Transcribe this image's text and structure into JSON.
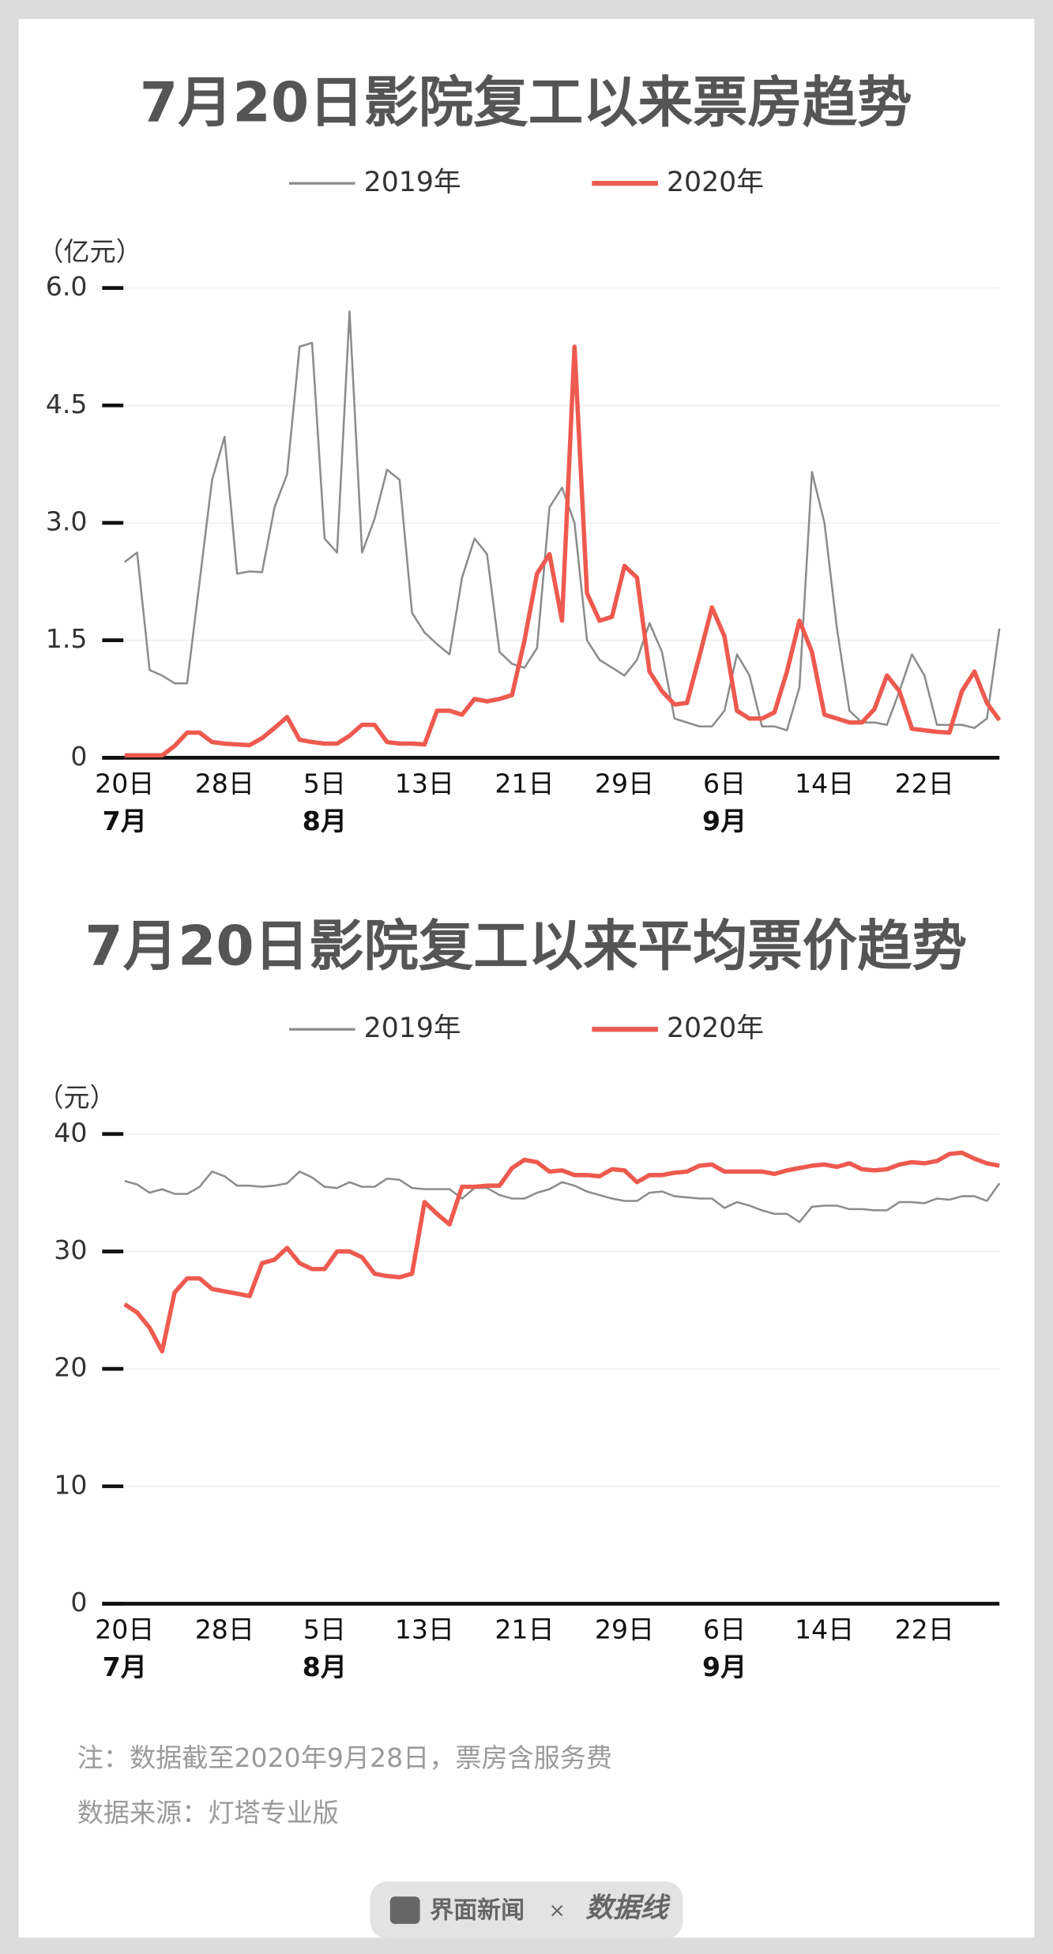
{
  "chart_data": [
    {
      "type": "line",
      "title": "7月20日影院复工以来票房趋势",
      "y_label": "（亿元）",
      "categories": [
        "20日",
        null,
        null,
        null,
        null,
        null,
        null,
        null,
        "28日",
        null,
        null,
        null,
        null,
        null,
        null,
        null,
        "5日",
        null,
        null,
        null,
        null,
        null,
        null,
        null,
        "13日",
        null,
        null,
        null,
        null,
        null,
        null,
        null,
        "21日",
        null,
        null,
        null,
        null,
        null,
        null,
        null,
        "29日",
        null,
        null,
        null,
        null,
        null,
        null,
        null,
        "6日",
        null,
        null,
        null,
        null,
        null,
        null,
        null,
        "14日",
        null,
        null,
        null,
        null,
        null,
        null,
        null,
        "22日",
        null,
        null,
        null,
        null,
        null,
        null
      ],
      "months": [
        "7月",
        null,
        null,
        null,
        null,
        null,
        null,
        null,
        null,
        null,
        null,
        null,
        null,
        null,
        null,
        null,
        "8月",
        null,
        null,
        null,
        null,
        null,
        null,
        null,
        null,
        null,
        null,
        null,
        null,
        null,
        null,
        null,
        null,
        null,
        null,
        null,
        null,
        null,
        null,
        null,
        null,
        null,
        null,
        null,
        null,
        null,
        null,
        null,
        "9月",
        null,
        null,
        null,
        null,
        null,
        null,
        null,
        null,
        null,
        null,
        null,
        null,
        null,
        null,
        null,
        null,
        null,
        null,
        null,
        null,
        null,
        null
      ],
      "series": [
        {
          "name": "2019年",
          "color": "#8c8c8c",
          "values": [
            2.5,
            2.62,
            1.12,
            1.05,
            0.95,
            0.95,
            2.25,
            3.55,
            4.1,
            2.35,
            2.38,
            2.37,
            3.2,
            3.62,
            5.25,
            5.3,
            2.8,
            2.62,
            5.7,
            2.62,
            3.05,
            3.68,
            3.55,
            1.85,
            1.6,
            1.45,
            1.32,
            2.3,
            2.8,
            2.6,
            1.35,
            1.2,
            1.15,
            1.4,
            3.2,
            3.45,
            3.0,
            1.5,
            1.25,
            1.15,
            1.05,
            1.25,
            1.72,
            1.35,
            0.5,
            0.45,
            0.4,
            0.4,
            0.6,
            1.32,
            1.05,
            0.4,
            0.4,
            0.35,
            0.9,
            3.65,
            3.0,
            1.65,
            0.6,
            0.45,
            0.45,
            0.42,
            0.85,
            1.32,
            1.05,
            0.42,
            0.42,
            0.42,
            0.38,
            0.5,
            1.65
          ]
        },
        {
          "name": "2020年",
          "color": "#ee5a4f",
          "values": [
            0.03,
            0.03,
            0.03,
            0.03,
            0.15,
            0.32,
            0.32,
            0.2,
            0.18,
            0.17,
            0.16,
            0.25,
            0.38,
            0.52,
            0.23,
            0.2,
            0.18,
            0.18,
            0.28,
            0.42,
            0.42,
            0.2,
            0.18,
            0.18,
            0.17,
            0.6,
            0.6,
            0.55,
            0.75,
            0.72,
            0.75,
            0.8,
            1.5,
            2.35,
            2.6,
            1.75,
            5.25,
            2.1,
            1.75,
            1.8,
            2.45,
            2.3,
            1.1,
            0.85,
            0.68,
            0.7,
            1.3,
            1.92,
            1.55,
            0.6,
            0.5,
            0.5,
            0.58,
            1.1,
            1.75,
            1.35,
            0.55,
            0.5,
            0.45,
            0.45,
            0.62,
            1.05,
            0.85,
            0.37,
            0.35,
            0.33,
            0.32,
            0.85,
            1.1,
            0.7,
            0.48
          ]
        }
      ],
      "ylim": [
        0,
        6
      ],
      "yticks": [
        0,
        1.5,
        {
          "value": 3,
          "label": "3.0"
        },
        4.5,
        {
          "value": 6,
          "label": "6.0"
        }
      ],
      "grid": true
    },
    {
      "type": "line",
      "title": "7月20日影院复工以来平均票价趋势",
      "y_label": "（元）",
      "categories": [
        "20日",
        null,
        null,
        null,
        null,
        null,
        null,
        null,
        "28日",
        null,
        null,
        null,
        null,
        null,
        null,
        null,
        "5日",
        null,
        null,
        null,
        null,
        null,
        null,
        null,
        "13日",
        null,
        null,
        null,
        null,
        null,
        null,
        null,
        "21日",
        null,
        null,
        null,
        null,
        null,
        null,
        null,
        "29日",
        null,
        null,
        null,
        null,
        null,
        null,
        null,
        "6日",
        null,
        null,
        null,
        null,
        null,
        null,
        null,
        "14日",
        null,
        null,
        null,
        null,
        null,
        null,
        null,
        "22日",
        null,
        null,
        null,
        null,
        null,
        null
      ],
      "months": [
        "7月",
        null,
        null,
        null,
        null,
        null,
        null,
        null,
        null,
        null,
        null,
        null,
        null,
        null,
        null,
        null,
        "8月",
        null,
        null,
        null,
        null,
        null,
        null,
        null,
        null,
        null,
        null,
        null,
        null,
        null,
        null,
        null,
        null,
        null,
        null,
        null,
        null,
        null,
        null,
        null,
        null,
        null,
        null,
        null,
        null,
        null,
        null,
        null,
        "9月",
        null,
        null,
        null,
        null,
        null,
        null,
        null,
        null,
        null,
        null,
        null,
        null,
        null,
        null,
        null,
        null,
        null,
        null,
        null,
        null,
        null,
        null
      ],
      "series": [
        {
          "name": "2019年",
          "color": "#8c8c8c",
          "values": [
            36,
            35.7,
            35,
            35.3,
            34.9,
            34.9,
            35.5,
            36.8,
            36.4,
            35.6,
            35.6,
            35.5,
            35.6,
            35.8,
            36.8,
            36.3,
            35.5,
            35.4,
            35.9,
            35.5,
            35.5,
            36.2,
            36.1,
            35.4,
            35.3,
            35.3,
            35.3,
            34.5,
            35.4,
            35.4,
            34.8,
            34.5,
            34.5,
            35,
            35.3,
            35.9,
            35.6,
            35.1,
            34.8,
            34.5,
            34.3,
            34.3,
            35,
            35.1,
            34.7,
            34.6,
            34.5,
            34.5,
            33.7,
            34.2,
            33.9,
            33.5,
            33.2,
            33.2,
            32.5,
            33.8,
            33.9,
            33.9,
            33.6,
            33.6,
            33.5,
            33.5,
            34.2,
            34.2,
            34.1,
            34.5,
            34.4,
            34.7,
            34.7,
            34.3,
            35.8
          ]
        },
        {
          "name": "2020年",
          "color": "#ee5a4f",
          "values": [
            25.5,
            24.8,
            23.5,
            21.5,
            26.5,
            27.7,
            27.7,
            26.8,
            26.6,
            26.4,
            26.2,
            29,
            29.3,
            30.3,
            29,
            28.5,
            28.5,
            30,
            30,
            29.5,
            28.1,
            27.9,
            27.8,
            28.1,
            34.2,
            33.2,
            32.3,
            35.5,
            35.5,
            35.6,
            35.6,
            37.1,
            37.8,
            37.6,
            36.8,
            36.9,
            36.5,
            36.5,
            36.4,
            37,
            36.9,
            35.9,
            36.5,
            36.5,
            36.7,
            36.8,
            37.3,
            37.4,
            36.8,
            36.8,
            36.8,
            36.8,
            36.6,
            36.9,
            37.1,
            37.3,
            37.4,
            37.2,
            37.5,
            37,
            36.9,
            37,
            37.4,
            37.6,
            37.5,
            37.7,
            38.3,
            38.4,
            37.9,
            37.5,
            37.3
          ]
        }
      ],
      "ylim": [
        0,
        40
      ],
      "yticks": [
        0,
        10,
        20,
        30,
        40
      ],
      "grid": true
    }
  ],
  "notes": [
    "注：数据截至2020年9月28日，票房含服务费",
    "数据来源：灯塔专业版"
  ],
  "footer": {
    "brand": "界面新闻",
    "separator": "×",
    "partner": "数据线"
  }
}
